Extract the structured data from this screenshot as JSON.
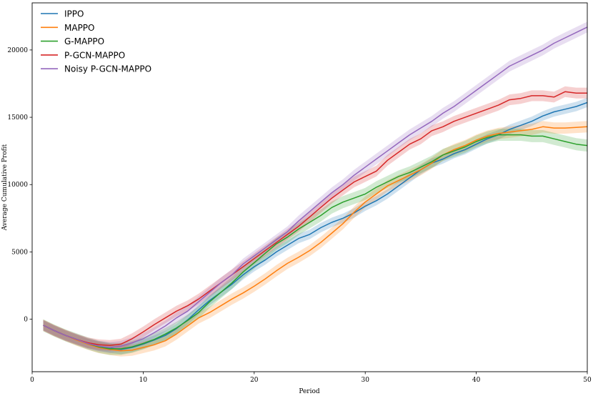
{
  "chart_data": {
    "type": "line",
    "xlabel": "Period",
    "ylabel": "Average Cumulative Profit",
    "xlim": [
      0,
      50
    ],
    "ylim": [
      -3900,
      23500
    ],
    "xticks": [
      0,
      10,
      20,
      30,
      40,
      50
    ],
    "yticks": [
      0,
      5000,
      10000,
      15000,
      20000
    ],
    "grid": false,
    "legend_position": "top-left",
    "series": [
      {
        "name": "IPPO",
        "color": "#1f77b4",
        "band": 350,
        "x": [
          1,
          2,
          3,
          4,
          5,
          6,
          7,
          8,
          9,
          10,
          11,
          12,
          13,
          14,
          15,
          16,
          17,
          18,
          19,
          20,
          21,
          22,
          23,
          24,
          25,
          26,
          27,
          28,
          29,
          30,
          31,
          32,
          33,
          34,
          35,
          36,
          37,
          38,
          39,
          40,
          41,
          42,
          43,
          44,
          45,
          46,
          47,
          48,
          49,
          50
        ],
        "y": [
          -450,
          -850,
          -1200,
          -1500,
          -1800,
          -2000,
          -2150,
          -2250,
          -2100,
          -1850,
          -1550,
          -1200,
          -700,
          -50,
          700,
          1400,
          2000,
          2600,
          3300,
          3900,
          4400,
          5000,
          5500,
          6000,
          6300,
          6800,
          7200,
          7500,
          7900,
          8400,
          8800,
          9300,
          9900,
          10500,
          11100,
          11600,
          11900,
          12300,
          12600,
          13000,
          13400,
          13700,
          14100,
          14400,
          14700,
          15100,
          15400,
          15600,
          15800,
          16100
        ]
      },
      {
        "name": "MAPPO",
        "color": "#ff7f0e",
        "band": 420,
        "x": [
          1,
          2,
          3,
          4,
          5,
          6,
          7,
          8,
          9,
          10,
          11,
          12,
          13,
          14,
          15,
          16,
          17,
          18,
          19,
          20,
          21,
          22,
          23,
          24,
          25,
          26,
          27,
          28,
          29,
          30,
          31,
          32,
          33,
          34,
          35,
          36,
          37,
          38,
          39,
          40,
          41,
          42,
          43,
          44,
          45,
          46,
          47,
          48,
          49,
          50
        ],
        "y": [
          -450,
          -850,
          -1200,
          -1550,
          -1850,
          -2100,
          -2250,
          -2350,
          -2300,
          -2100,
          -1900,
          -1600,
          -1100,
          -500,
          100,
          500,
          1000,
          1500,
          1950,
          2450,
          3000,
          3600,
          4150,
          4600,
          5100,
          5700,
          6400,
          7100,
          7950,
          8700,
          9300,
          9900,
          10300,
          10700,
          11100,
          11600,
          12200,
          12600,
          12900,
          13300,
          13600,
          13800,
          13900,
          14000,
          14100,
          14300,
          14200,
          14200,
          14250,
          14300
        ]
      },
      {
        "name": "G-MAPPO",
        "color": "#2ca02c",
        "band": 450,
        "x": [
          1,
          2,
          3,
          4,
          5,
          6,
          7,
          8,
          9,
          10,
          11,
          12,
          13,
          14,
          15,
          16,
          17,
          18,
          19,
          20,
          21,
          22,
          23,
          24,
          25,
          26,
          27,
          28,
          29,
          30,
          31,
          32,
          33,
          34,
          35,
          36,
          37,
          38,
          39,
          40,
          41,
          42,
          43,
          44,
          45,
          46,
          47,
          48,
          49,
          50
        ],
        "y": [
          -450,
          -850,
          -1200,
          -1500,
          -1800,
          -2050,
          -2200,
          -2200,
          -2050,
          -1800,
          -1500,
          -1100,
          -650,
          -100,
          500,
          1300,
          2000,
          2700,
          3500,
          4200,
          4900,
          5600,
          6100,
          6700,
          7200,
          7700,
          8300,
          8700,
          9000,
          9300,
          9800,
          10200,
          10600,
          10900,
          11300,
          11700,
          12200,
          12500,
          12800,
          13200,
          13500,
          13700,
          13700,
          13700,
          13600,
          13600,
          13400,
          13200,
          13000,
          12900
        ]
      },
      {
        "name": "P-GCN-MAPPO",
        "color": "#d62728",
        "band": 400,
        "x": [
          1,
          2,
          3,
          4,
          5,
          6,
          7,
          8,
          9,
          10,
          11,
          12,
          13,
          14,
          15,
          16,
          17,
          18,
          19,
          20,
          21,
          22,
          23,
          24,
          25,
          26,
          27,
          28,
          29,
          30,
          31,
          32,
          33,
          34,
          35,
          36,
          37,
          38,
          39,
          40,
          41,
          42,
          43,
          44,
          45,
          46,
          47,
          48,
          49,
          50
        ],
        "y": [
          -450,
          -850,
          -1200,
          -1500,
          -1750,
          -1900,
          -1950,
          -1850,
          -1450,
          -950,
          -400,
          100,
          600,
          1000,
          1500,
          2100,
          2700,
          3300,
          3900,
          4500,
          5100,
          5700,
          6300,
          6900,
          7600,
          8300,
          9000,
          9600,
          10200,
          10600,
          11000,
          11800,
          12400,
          13000,
          13400,
          14000,
          14300,
          14700,
          15000,
          15300,
          15600,
          15900,
          16300,
          16400,
          16600,
          16600,
          16500,
          16900,
          16800,
          16800
        ]
      },
      {
        "name": "Noisy P-GCN-MAPPO",
        "color": "#9467bd",
        "band": 400,
        "x": [
          1,
          2,
          3,
          4,
          5,
          6,
          7,
          8,
          9,
          10,
          11,
          12,
          13,
          14,
          15,
          16,
          17,
          18,
          19,
          20,
          21,
          22,
          23,
          24,
          25,
          26,
          27,
          28,
          29,
          30,
          31,
          32,
          33,
          34,
          35,
          36,
          37,
          38,
          39,
          40,
          41,
          42,
          43,
          44,
          45,
          46,
          47,
          48,
          49,
          50
        ],
        "y": [
          -450,
          -850,
          -1200,
          -1500,
          -1800,
          -2000,
          -2100,
          -2000,
          -1750,
          -1450,
          -1000,
          -500,
          100,
          600,
          1300,
          2000,
          2700,
          3300,
          4100,
          4700,
          5300,
          5900,
          6500,
          7300,
          8000,
          8700,
          9400,
          10000,
          10700,
          11300,
          11900,
          12500,
          13100,
          13700,
          14200,
          14700,
          15300,
          15800,
          16400,
          17000,
          17600,
          18200,
          18800,
          19200,
          19600,
          20000,
          20500,
          20900,
          21300,
          21700
        ]
      }
    ]
  }
}
